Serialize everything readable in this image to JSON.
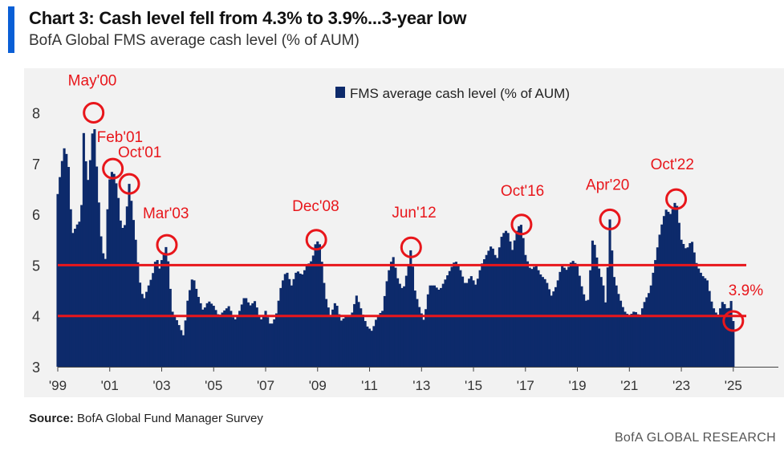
{
  "header": {
    "title": "Chart 3: Cash level fell from 4.3% to 3.9%...3-year low",
    "subtitle": "BofA Global FMS average cash level (% of AUM)"
  },
  "source": {
    "label": "Source:",
    "text": "BofA Global Fund Manager Survey"
  },
  "footer": {
    "brand": "BofA GLOBAL RESEARCH"
  },
  "colors": {
    "bar": "#0d2a6b",
    "annotation": "#e8161b",
    "accent": "#0a5fd6",
    "plot_background": "#f2f2f2"
  },
  "chart_data": {
    "type": "bar",
    "title": "",
    "xlabel": "",
    "ylabel": "",
    "xlim": [
      1999.0,
      2025.5
    ],
    "ylim": [
      3,
      8.5
    ],
    "yticks": [
      3,
      4,
      5,
      6,
      7,
      8
    ],
    "xtick_labels": [
      "'99",
      "'01",
      "'03",
      "'05",
      "'07",
      "'09",
      "'11",
      "'13",
      "'15",
      "'17",
      "'19",
      "'21",
      "'23",
      "'25"
    ],
    "xtick_values": [
      1999,
      2001,
      2003,
      2005,
      2007,
      2009,
      2011,
      2013,
      2015,
      2017,
      2019,
      2021,
      2023,
      2025
    ],
    "series": [
      {
        "name": "FMS average cash level (% of AUM)",
        "anchors": [
          [
            1999.0,
            6.4
          ],
          [
            1999.15,
            7.0
          ],
          [
            1999.25,
            7.3
          ],
          [
            1999.4,
            7.1
          ],
          [
            1999.55,
            5.6
          ],
          [
            1999.75,
            5.8
          ],
          [
            1999.9,
            5.9
          ],
          [
            2000.0,
            7.6
          ],
          [
            2000.15,
            6.6
          ],
          [
            2000.3,
            7.3
          ],
          [
            2000.38,
            8.0
          ],
          [
            2000.55,
            6.5
          ],
          [
            2000.7,
            5.3
          ],
          [
            2000.85,
            5.1
          ],
          [
            2000.95,
            6.6
          ],
          [
            2001.12,
            6.9
          ],
          [
            2001.3,
            6.5
          ],
          [
            2001.45,
            5.7
          ],
          [
            2001.6,
            5.8
          ],
          [
            2001.75,
            6.6
          ],
          [
            2001.85,
            6.2
          ],
          [
            2002.0,
            5.5
          ],
          [
            2002.15,
            4.7
          ],
          [
            2002.3,
            4.3
          ],
          [
            2002.5,
            4.6
          ],
          [
            2002.65,
            4.8
          ],
          [
            2002.8,
            5.2
          ],
          [
            2002.9,
            4.9
          ],
          [
            2003.05,
            5.2
          ],
          [
            2003.2,
            5.4
          ],
          [
            2003.4,
            4.1
          ],
          [
            2003.6,
            3.9
          ],
          [
            2003.85,
            3.6
          ],
          [
            2004.0,
            4.3
          ],
          [
            2004.2,
            4.8
          ],
          [
            2004.4,
            4.4
          ],
          [
            2004.6,
            4.1
          ],
          [
            2004.8,
            4.3
          ],
          [
            2005.0,
            4.2
          ],
          [
            2005.2,
            4.0
          ],
          [
            2005.4,
            4.1
          ],
          [
            2005.6,
            4.2
          ],
          [
            2005.8,
            3.9
          ],
          [
            2006.0,
            4.1
          ],
          [
            2006.2,
            4.4
          ],
          [
            2006.4,
            4.2
          ],
          [
            2006.6,
            4.3
          ],
          [
            2006.8,
            3.9
          ],
          [
            2007.0,
            4.1
          ],
          [
            2007.2,
            3.8
          ],
          [
            2007.4,
            4.0
          ],
          [
            2007.6,
            4.6
          ],
          [
            2007.8,
            4.9
          ],
          [
            2008.0,
            4.6
          ],
          [
            2008.2,
            4.9
          ],
          [
            2008.4,
            4.8
          ],
          [
            2008.6,
            5.0
          ],
          [
            2008.8,
            5.1
          ],
          [
            2008.95,
            5.5
          ],
          [
            2009.1,
            5.4
          ],
          [
            2009.3,
            4.4
          ],
          [
            2009.5,
            4.0
          ],
          [
            2009.7,
            4.3
          ],
          [
            2009.9,
            3.9
          ],
          [
            2010.1,
            4.0
          ],
          [
            2010.3,
            4.0
          ],
          [
            2010.5,
            4.4
          ],
          [
            2010.7,
            4.1
          ],
          [
            2010.9,
            3.8
          ],
          [
            2011.1,
            3.7
          ],
          [
            2011.3,
            4.0
          ],
          [
            2011.5,
            4.1
          ],
          [
            2011.7,
            4.8
          ],
          [
            2011.9,
            5.2
          ],
          [
            2012.1,
            4.7
          ],
          [
            2012.3,
            4.5
          ],
          [
            2012.5,
            5.0
          ],
          [
            2012.6,
            5.35
          ],
          [
            2012.75,
            4.5
          ],
          [
            2012.9,
            4.2
          ],
          [
            2013.1,
            3.9
          ],
          [
            2013.3,
            4.6
          ],
          [
            2013.5,
            4.6
          ],
          [
            2013.7,
            4.5
          ],
          [
            2013.9,
            4.7
          ],
          [
            2014.1,
            4.9
          ],
          [
            2014.3,
            5.1
          ],
          [
            2014.5,
            4.9
          ],
          [
            2014.7,
            4.6
          ],
          [
            2014.9,
            4.8
          ],
          [
            2015.1,
            4.6
          ],
          [
            2015.3,
            5.0
          ],
          [
            2015.5,
            5.2
          ],
          [
            2015.7,
            5.4
          ],
          [
            2015.9,
            5.1
          ],
          [
            2016.1,
            5.6
          ],
          [
            2016.3,
            5.7
          ],
          [
            2016.5,
            5.3
          ],
          [
            2016.7,
            5.75
          ],
          [
            2016.85,
            5.8
          ],
          [
            2017.0,
            5.2
          ],
          [
            2017.2,
            4.9
          ],
          [
            2017.4,
            5.0
          ],
          [
            2017.6,
            4.8
          ],
          [
            2017.8,
            4.7
          ],
          [
            2018.0,
            4.4
          ],
          [
            2018.2,
            4.6
          ],
          [
            2018.4,
            5.0
          ],
          [
            2018.6,
            4.9
          ],
          [
            2018.8,
            5.1
          ],
          [
            2019.0,
            5.0
          ],
          [
            2019.2,
            4.5
          ],
          [
            2019.4,
            4.2
          ],
          [
            2019.6,
            5.6
          ],
          [
            2019.8,
            5.0
          ],
          [
            2020.0,
            4.6
          ],
          [
            2020.1,
            4.2
          ],
          [
            2020.25,
            5.9
          ],
          [
            2020.4,
            4.8
          ],
          [
            2020.6,
            4.4
          ],
          [
            2020.8,
            4.1
          ],
          [
            2021.0,
            4.0
          ],
          [
            2021.2,
            4.1
          ],
          [
            2021.4,
            4.0
          ],
          [
            2021.6,
            4.3
          ],
          [
            2021.8,
            4.5
          ],
          [
            2022.0,
            5.1
          ],
          [
            2022.2,
            5.7
          ],
          [
            2022.4,
            6.1
          ],
          [
            2022.6,
            6.0
          ],
          [
            2022.8,
            6.3
          ],
          [
            2023.0,
            5.5
          ],
          [
            2023.2,
            5.3
          ],
          [
            2023.4,
            5.5
          ],
          [
            2023.6,
            5.0
          ],
          [
            2023.8,
            4.8
          ],
          [
            2024.0,
            4.7
          ],
          [
            2024.2,
            4.2
          ],
          [
            2024.4,
            4.0
          ],
          [
            2024.6,
            4.3
          ],
          [
            2024.8,
            4.1
          ],
          [
            2024.92,
            4.3
          ],
          [
            2025.0,
            3.9
          ]
        ]
      }
    ],
    "reference_lines": [
      5.0,
      4.0
    ],
    "annotations": [
      {
        "label": "May'00",
        "x": 2000.38,
        "y": 8.0,
        "label_dx": -32,
        "label_dy": -34
      },
      {
        "label": "Feb'01",
        "x": 2001.12,
        "y": 6.9,
        "label_dx": -20,
        "label_dy": -33
      },
      {
        "label": "Oct'01",
        "x": 2001.75,
        "y": 6.6,
        "label_dx": -14,
        "label_dy": -33
      },
      {
        "label": "Mar'03",
        "x": 2003.2,
        "y": 5.4,
        "label_dx": -30,
        "label_dy": -33
      },
      {
        "label": "Dec'08",
        "x": 2008.95,
        "y": 5.5,
        "label_dx": -30,
        "label_dy": -36
      },
      {
        "label": "Jun'12",
        "x": 2012.6,
        "y": 5.35,
        "label_dx": -24,
        "label_dy": -37
      },
      {
        "label": "Oct'16",
        "x": 2016.85,
        "y": 5.8,
        "label_dx": -26,
        "label_dy": -36
      },
      {
        "label": "Apr'20",
        "x": 2020.25,
        "y": 5.9,
        "label_dx": -30,
        "label_dy": -37
      },
      {
        "label": "Oct'22",
        "x": 2022.8,
        "y": 6.3,
        "label_dx": -32,
        "label_dy": -37
      },
      {
        "label": "3.9%",
        "x": 2025.0,
        "y": 3.9,
        "label_dx": -6,
        "label_dy": -32
      }
    ],
    "legend": {
      "label": "FMS average cash level (% of AUM)",
      "placement": "top-center"
    },
    "grid": false
  }
}
